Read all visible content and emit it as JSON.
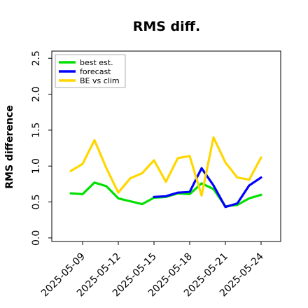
{
  "chart_data": {
    "type": "line",
    "title": "RMS diff.",
    "xlabel": "",
    "ylabel": "RMS difference",
    "ylim": [
      -0.05,
      2.6
    ],
    "yticks": [
      "0.0",
      "0.5",
      "1.0",
      "1.5",
      "2.0",
      "2.5"
    ],
    "x_start": "2025-05-07",
    "xticks": [
      {
        "label": "2025-05-09",
        "color": "#000000"
      },
      {
        "label": "2025-05-12",
        "color": "#000000"
      },
      {
        "label": "2025-05-15",
        "color": "#228b22"
      },
      {
        "label": "2025-05-18",
        "color": "#000000"
      },
      {
        "label": "2025-05-21",
        "color": "#000000"
      },
      {
        "label": "2025-05-24",
        "color": "#000000"
      }
    ],
    "grid": false,
    "legend_position": "top-left",
    "series": [
      {
        "name": "best est.",
        "color": "#00e000",
        "x": [
          "2025-05-08",
          "2025-05-09",
          "2025-05-10",
          "2025-05-11",
          "2025-05-12",
          "2025-05-13",
          "2025-05-14",
          "2025-05-15",
          "2025-05-16",
          "2025-05-17",
          "2025-05-18",
          "2025-05-19",
          "2025-05-20",
          "2025-05-21",
          "2025-05-22",
          "2025-05-23",
          "2025-05-24"
        ],
        "values": [
          0.62,
          0.61,
          0.77,
          0.72,
          0.55,
          0.51,
          0.47,
          0.56,
          0.57,
          0.62,
          0.61,
          0.76,
          0.68,
          0.44,
          0.46,
          0.55,
          0.6
        ]
      },
      {
        "name": "forecast",
        "color": "#0000ff",
        "x": [
          "2025-05-15",
          "2025-05-16",
          "2025-05-17",
          "2025-05-18",
          "2025-05-19",
          "2025-05-20",
          "2025-05-21",
          "2025-05-22",
          "2025-05-23",
          "2025-05-24"
        ],
        "values": [
          0.57,
          0.58,
          0.63,
          0.64,
          0.97,
          0.73,
          0.43,
          0.48,
          0.73,
          0.84
        ]
      },
      {
        "name": "BE vs clim",
        "color": "#ffd700",
        "x": [
          "2025-05-08",
          "2025-05-09",
          "2025-05-10",
          "2025-05-11",
          "2025-05-12",
          "2025-05-13",
          "2025-05-14",
          "2025-05-15",
          "2025-05-16",
          "2025-05-17",
          "2025-05-18",
          "2025-05-19",
          "2025-05-20",
          "2025-05-21",
          "2025-05-22",
          "2025-05-23",
          "2025-05-24"
        ],
        "values": [
          0.93,
          1.03,
          1.36,
          0.97,
          0.63,
          0.83,
          0.9,
          1.08,
          0.78,
          1.11,
          1.14,
          0.59,
          1.4,
          1.05,
          0.84,
          0.81,
          1.12
        ]
      }
    ]
  }
}
